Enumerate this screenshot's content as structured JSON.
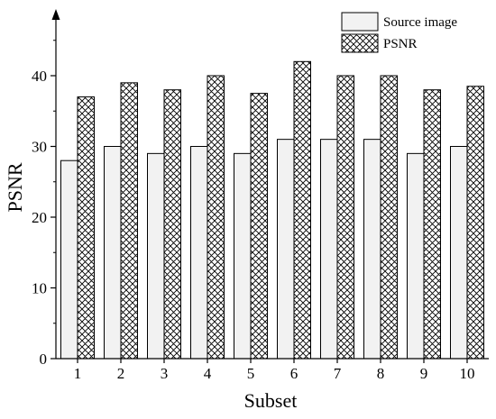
{
  "chart_data": {
    "type": "bar",
    "title": "",
    "xlabel": "Subset",
    "ylabel": "PSNR",
    "categories": [
      "1",
      "2",
      "3",
      "4",
      "5",
      "6",
      "7",
      "8",
      "9",
      "10"
    ],
    "ylim": [
      0,
      50
    ],
    "yticks": [
      0,
      10,
      20,
      30,
      40
    ],
    "grid": false,
    "legend_position": "top-right",
    "series": [
      {
        "name": "Source image",
        "values": [
          28,
          30,
          29,
          30,
          29,
          31,
          31,
          31,
          29,
          30
        ],
        "fill": "#f2f2f2",
        "pattern": "solid"
      },
      {
        "name": "PSNR",
        "values": [
          37,
          39,
          38,
          40,
          37.5,
          42,
          40,
          40,
          38,
          38.5
        ],
        "fill": "#ffffff",
        "pattern": "crosshatch"
      }
    ]
  }
}
